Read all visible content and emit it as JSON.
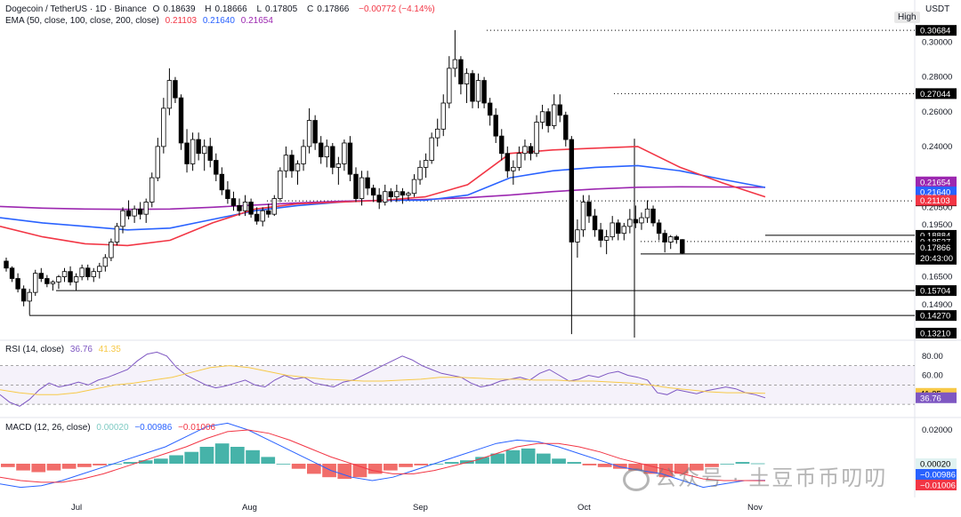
{
  "header": {
    "symbol": "Dogecoin / TetherUS · 1D · Binance",
    "o_label": "O",
    "o_value": "0.18639",
    "h_label": "H",
    "h_value": "0.18666",
    "l_label": "L",
    "l_value": "0.17805",
    "c_label": "C",
    "c_value": "0.17866",
    "change": "−0.00772 (−4.14%)",
    "ema_label": "EMA (50, close, 100, close, 200, close)",
    "ema50_value": "0.21103",
    "ema100_value": "0.21640",
    "ema200_value": "0.21654",
    "currency": "USDT",
    "high_badge": "High"
  },
  "rsi": {
    "label": "RSI (14, close)",
    "rsi_value": "36.76",
    "ma_value": "41.35",
    "tick_80": "80.00",
    "tick_60": "60.00"
  },
  "macd": {
    "label": "MACD (12, 26, close)",
    "hist_value": "0.00020",
    "macd_value": "−0.00986",
    "signal_value": "−0.01006",
    "tick_top": "0.02000"
  },
  "x_axis": [
    "Jul",
    "Aug",
    "Sep",
    "Oct",
    "Nov"
  ],
  "price_ticks": [
    "0.30000",
    "0.28000",
    "0.26000",
    "0.24000",
    "0.22000",
    "0.20500",
    "0.19500",
    "0.16500",
    "0.14900"
  ],
  "levels": [
    {
      "price": "0.30684",
      "style": "dotted"
    },
    {
      "price": "0.27044",
      "style": "dotted"
    },
    {
      "price": "0.20869",
      "style": "dotted"
    },
    {
      "price": "0.18884",
      "style": "solid"
    },
    {
      "price": "0.18527",
      "style": "dotted"
    },
    {
      "price": "0.17816",
      "style": "solid"
    },
    {
      "price": "0.15704",
      "style": "solid"
    },
    {
      "price": "0.14270",
      "style": "solid"
    },
    {
      "price": "0.13210",
      "style": "vertical"
    }
  ],
  "price_tags": {
    "ema200": "0.21654",
    "ema100": "0.21640",
    "ema50": "0.21103",
    "last": "0.17866",
    "countdown": "20:43:00",
    "last_color": "#000000"
  },
  "watermark": "公众号 · 土豆币币叨叨",
  "colors": {
    "up": "#ffffff",
    "down": "#000000",
    "ema50": "#f23645",
    "ema100": "#2962ff",
    "ema200": "#9c27b0",
    "rsi": "#7e57c2",
    "rsi_ma": "#f7c948",
    "hist_up": "#26a69a",
    "hist_down": "#ef5350"
  },
  "chart_data": {
    "type": "candlestick",
    "title": "Dogecoin / TetherUS · 1D · Binance",
    "x_start": "Jun 14",
    "x_end": "Nov 6",
    "candles": [
      [
        0.174,
        0.176,
        0.168,
        0.17
      ],
      [
        0.17,
        0.171,
        0.162,
        0.164
      ],
      [
        0.164,
        0.167,
        0.156,
        0.158
      ],
      [
        0.158,
        0.16,
        0.148,
        0.151
      ],
      [
        0.151,
        0.158,
        0.143,
        0.156
      ],
      [
        0.156,
        0.169,
        0.154,
        0.167
      ],
      [
        0.167,
        0.17,
        0.162,
        0.164
      ],
      [
        0.164,
        0.166,
        0.159,
        0.161
      ],
      [
        0.161,
        0.163,
        0.157,
        0.162
      ],
      [
        0.162,
        0.166,
        0.158,
        0.165
      ],
      [
        0.165,
        0.17,
        0.162,
        0.168
      ],
      [
        0.168,
        0.171,
        0.16,
        0.162
      ],
      [
        0.162,
        0.167,
        0.157,
        0.165
      ],
      [
        0.165,
        0.172,
        0.163,
        0.17
      ],
      [
        0.17,
        0.172,
        0.163,
        0.165
      ],
      [
        0.165,
        0.17,
        0.162,
        0.168
      ],
      [
        0.168,
        0.173,
        0.164,
        0.171
      ],
      [
        0.171,
        0.178,
        0.168,
        0.176
      ],
      [
        0.176,
        0.187,
        0.174,
        0.185
      ],
      [
        0.185,
        0.196,
        0.183,
        0.194
      ],
      [
        0.194,
        0.205,
        0.19,
        0.203
      ],
      [
        0.203,
        0.209,
        0.198,
        0.2
      ],
      [
        0.2,
        0.206,
        0.196,
        0.204
      ],
      [
        0.204,
        0.208,
        0.198,
        0.201
      ],
      [
        0.201,
        0.21,
        0.196,
        0.208
      ],
      [
        0.208,
        0.225,
        0.205,
        0.222
      ],
      [
        0.222,
        0.245,
        0.22,
        0.24
      ],
      [
        0.24,
        0.268,
        0.236,
        0.262
      ],
      [
        0.262,
        0.285,
        0.258,
        0.278
      ],
      [
        0.278,
        0.28,
        0.265,
        0.268
      ],
      [
        0.268,
        0.27,
        0.238,
        0.242
      ],
      [
        0.242,
        0.25,
        0.225,
        0.23
      ],
      [
        0.23,
        0.248,
        0.226,
        0.244
      ],
      [
        0.244,
        0.248,
        0.232,
        0.236
      ],
      [
        0.236,
        0.244,
        0.226,
        0.24
      ],
      [
        0.24,
        0.245,
        0.228,
        0.232
      ],
      [
        0.232,
        0.236,
        0.22,
        0.224
      ],
      [
        0.224,
        0.228,
        0.212,
        0.215
      ],
      [
        0.215,
        0.22,
        0.207,
        0.21
      ],
      [
        0.21,
        0.214,
        0.203,
        0.206
      ],
      [
        0.206,
        0.21,
        0.2,
        0.203
      ],
      [
        0.203,
        0.212,
        0.2,
        0.208
      ],
      [
        0.208,
        0.21,
        0.199,
        0.201
      ],
      [
        0.201,
        0.205,
        0.195,
        0.197
      ],
      [
        0.197,
        0.205,
        0.194,
        0.203
      ],
      [
        0.203,
        0.207,
        0.199,
        0.201
      ],
      [
        0.201,
        0.212,
        0.2,
        0.21
      ],
      [
        0.21,
        0.228,
        0.208,
        0.226
      ],
      [
        0.226,
        0.24,
        0.222,
        0.235
      ],
      [
        0.235,
        0.238,
        0.222,
        0.226
      ],
      [
        0.226,
        0.232,
        0.218,
        0.23
      ],
      [
        0.23,
        0.244,
        0.226,
        0.24
      ],
      [
        0.24,
        0.262,
        0.236,
        0.255
      ],
      [
        0.255,
        0.258,
        0.238,
        0.242
      ],
      [
        0.242,
        0.246,
        0.23,
        0.234
      ],
      [
        0.234,
        0.244,
        0.228,
        0.24
      ],
      [
        0.24,
        0.242,
        0.224,
        0.228
      ],
      [
        0.228,
        0.234,
        0.218,
        0.23
      ],
      [
        0.23,
        0.244,
        0.226,
        0.242
      ],
      [
        0.242,
        0.246,
        0.22,
        0.224
      ],
      [
        0.224,
        0.228,
        0.208,
        0.21
      ],
      [
        0.21,
        0.226,
        0.206,
        0.222
      ],
      [
        0.222,
        0.226,
        0.212,
        0.216
      ],
      [
        0.216,
        0.218,
        0.208,
        0.212
      ],
      [
        0.212,
        0.216,
        0.204,
        0.208
      ],
      [
        0.208,
        0.218,
        0.206,
        0.214
      ],
      [
        0.214,
        0.216,
        0.208,
        0.211
      ],
      [
        0.211,
        0.218,
        0.208,
        0.214
      ],
      [
        0.214,
        0.216,
        0.207,
        0.212
      ],
      [
        0.212,
        0.214,
        0.209,
        0.213
      ],
      [
        0.213,
        0.224,
        0.211,
        0.221
      ],
      [
        0.221,
        0.232,
        0.218,
        0.228
      ],
      [
        0.228,
        0.236,
        0.222,
        0.232
      ],
      [
        0.232,
        0.248,
        0.23,
        0.245
      ],
      [
        0.245,
        0.256,
        0.24,
        0.25
      ],
      [
        0.25,
        0.27,
        0.246,
        0.265
      ],
      [
        0.265,
        0.292,
        0.262,
        0.285
      ],
      [
        0.285,
        0.307,
        0.28,
        0.29
      ],
      [
        0.29,
        0.292,
        0.27,
        0.276
      ],
      [
        0.276,
        0.285,
        0.265,
        0.282
      ],
      [
        0.282,
        0.284,
        0.262,
        0.266
      ],
      [
        0.266,
        0.282,
        0.262,
        0.278
      ],
      [
        0.278,
        0.28,
        0.262,
        0.265
      ],
      [
        0.265,
        0.268,
        0.252,
        0.258
      ],
      [
        0.258,
        0.262,
        0.242,
        0.246
      ],
      [
        0.246,
        0.25,
        0.232,
        0.236
      ],
      [
        0.236,
        0.24,
        0.222,
        0.226
      ],
      [
        0.226,
        0.232,
        0.218,
        0.228
      ],
      [
        0.228,
        0.24,
        0.226,
        0.236
      ],
      [
        0.236,
        0.244,
        0.232,
        0.24
      ],
      [
        0.24,
        0.242,
        0.232,
        0.236
      ],
      [
        0.236,
        0.258,
        0.234,
        0.254
      ],
      [
        0.254,
        0.264,
        0.25,
        0.26
      ],
      [
        0.26,
        0.262,
        0.248,
        0.252
      ],
      [
        0.252,
        0.27,
        0.25,
        0.264
      ],
      [
        0.264,
        0.27,
        0.254,
        0.258
      ],
      [
        0.258,
        0.26,
        0.24,
        0.244
      ],
      [
        0.244,
        0.246,
        0.132,
        0.185
      ],
      [
        0.185,
        0.198,
        0.176,
        0.192
      ],
      [
        0.192,
        0.212,
        0.188,
        0.208
      ],
      [
        0.208,
        0.212,
        0.196,
        0.2
      ],
      [
        0.2,
        0.204,
        0.188,
        0.192
      ],
      [
        0.192,
        0.196,
        0.182,
        0.186
      ],
      [
        0.186,
        0.192,
        0.178,
        0.188
      ],
      [
        0.188,
        0.2,
        0.186,
        0.196
      ],
      [
        0.196,
        0.198,
        0.186,
        0.19
      ],
      [
        0.19,
        0.196,
        0.186,
        0.194
      ],
      [
        0.194,
        0.204,
        0.19,
        0.198
      ],
      [
        0.198,
        0.206,
        0.193,
        0.196
      ],
      [
        0.196,
        0.202,
        0.192,
        0.199
      ],
      [
        0.199,
        0.209,
        0.196,
        0.204
      ],
      [
        0.204,
        0.206,
        0.194,
        0.196
      ],
      [
        0.196,
        0.198,
        0.186,
        0.19
      ],
      [
        0.19,
        0.192,
        0.179,
        0.185
      ],
      [
        0.185,
        0.189,
        0.181,
        0.188
      ],
      [
        0.188,
        0.189,
        0.184,
        0.1864
      ],
      [
        0.18639,
        0.18666,
        0.17805,
        0.17866
      ]
    ],
    "ema50_value": 0.21103,
    "ema100_value": 0.2164,
    "ema200_value": 0.21654,
    "rsi_value": 36.76,
    "rsi_ma_value": 41.35,
    "macd_value": -0.00986,
    "signal_value": -0.01006,
    "hist_value": 0.0002,
    "price_range": [
      0.13,
      0.31
    ],
    "rsi_range": [
      0,
      100
    ]
  }
}
